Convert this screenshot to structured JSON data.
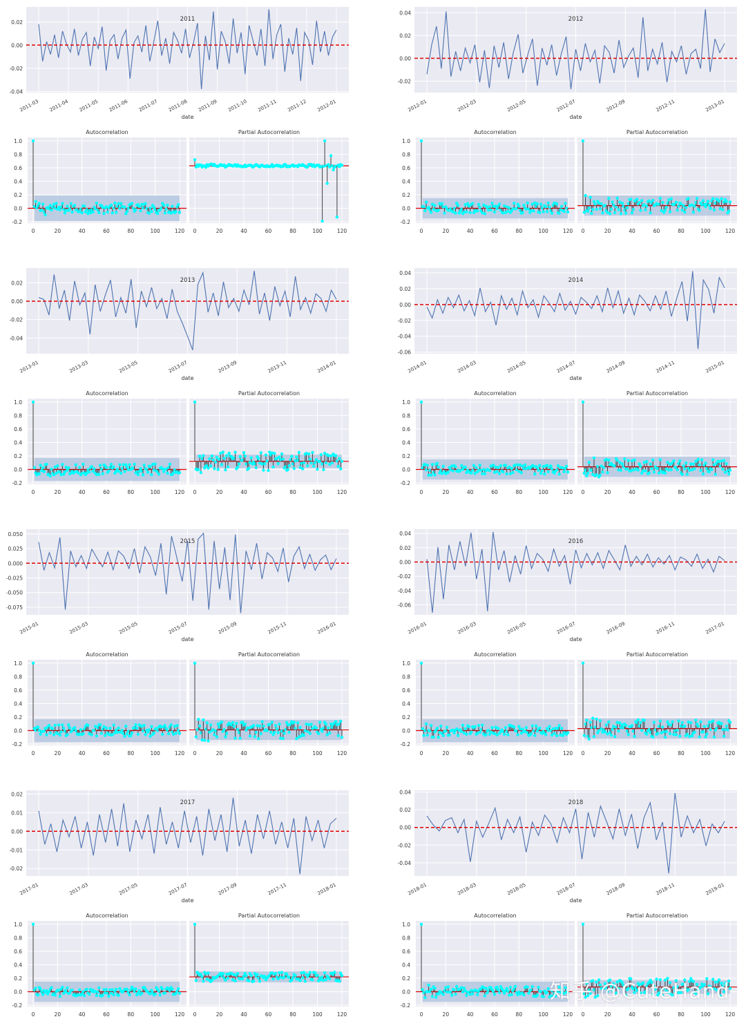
{
  "watermark": "知乎 @CuteHand",
  "colors": {
    "panel_bg": "#eaeaf2",
    "grid": "#ffffff",
    "line": "#4c72b0",
    "zero_line": "#e00000",
    "acf_marker": "#00ffff",
    "acf_stem": "#404040",
    "conf_band": "#b0c4de"
  },
  "chart_data": [
    {
      "type": "line",
      "title": "2011",
      "xlabel": "date",
      "ylabel": "",
      "xticks": [
        "2011-03",
        "2011-04",
        "2011-05",
        "2011-06",
        "2011-07",
        "2011-08",
        "2011-09",
        "2011-10",
        "2011-11",
        "2011-12",
        "2012-01"
      ],
      "yticks": [
        "0.02",
        "0.00",
        "-0.02",
        "-0.04"
      ],
      "ylim": [
        -0.041,
        0.033
      ],
      "zero_line": 0,
      "series": [
        {
          "values": [
            0.018,
            -0.014,
            0.003,
            -0.008,
            0.009,
            -0.011,
            0.012,
            0.001,
            -0.006,
            0.014,
            -0.009,
            0.005,
            0.011,
            -0.018,
            0.007,
            -0.003,
            0.016,
            -0.022,
            0.004,
            0.009,
            -0.012,
            0.006,
            0.013,
            -0.029,
            0.002,
            0.008,
            -0.006,
            0.017,
            -0.014,
            0.003,
            0.021,
            -0.009,
            0.006,
            -0.016,
            0.011,
            0.004,
            -0.007,
            0.014,
            -0.011,
            0.002,
            0.019,
            -0.038,
            0.008,
            -0.013,
            0.029,
            -0.021,
            0.012,
            0.003,
            -0.016,
            0.023,
            -0.007,
            0.011,
            -0.025,
            0.017,
            0.004,
            -0.009,
            0.014,
            -0.018,
            0.031,
            -0.012,
            0.009,
            0.018,
            -0.023,
            0.006,
            -0.008,
            0.015,
            -0.031,
            0.011,
            0.004,
            -0.017,
            0.021,
            -0.006,
            0.012,
            -0.009,
            0.007,
            0.013
          ]
        }
      ]
    },
    {
      "type": "line",
      "title": "2012",
      "xlabel": "date",
      "ylabel": "",
      "xticks": [
        "2012-01",
        "2012-03",
        "2012-05",
        "2012-07",
        "2012-09",
        "2012-11",
        "2013-01"
      ],
      "yticks": [
        "0.04",
        "0.02",
        "0.00",
        "-0.02"
      ],
      "ylim": [
        -0.03,
        0.045
      ],
      "zero_line": 0,
      "series": [
        {
          "values": [
            -0.014,
            0.012,
            0.028,
            -0.009,
            0.041,
            -0.016,
            0.006,
            -0.011,
            0.009,
            -0.004,
            0.012,
            -0.021,
            0.007,
            -0.026,
            0.011,
            -0.008,
            0.014,
            -0.018,
            0.005,
            0.021,
            -0.013,
            0.003,
            0.017,
            -0.024,
            0.009,
            -0.006,
            0.012,
            -0.015,
            0.004,
            0.019,
            -0.027,
            0.008,
            -0.011,
            0.013,
            -0.003,
            0.007,
            -0.022,
            0.011,
            0.005,
            -0.013,
            0.016,
            -0.008,
            0.002,
            0.009,
            -0.017,
            0.036,
            -0.011,
            0.008,
            -0.005,
            0.014,
            -0.021,
            0.006,
            -0.003,
            0.011,
            -0.014,
            0.004,
            0.008,
            -0.009,
            0.043,
            -0.012,
            0.017,
            0.005,
            0.013
          ]
        }
      ]
    },
    {
      "type": "line",
      "title": "2013",
      "xlabel": "date",
      "ylabel": "",
      "xticks": [
        "2013-01",
        "2013-03",
        "2013-05",
        "2013-07",
        "2013-09",
        "2013-11",
        "2014-01"
      ],
      "yticks": [
        "0.02",
        "0.00",
        "-0.02",
        "-0.04"
      ],
      "ylim": [
        -0.057,
        0.036
      ],
      "zero_line": 0,
      "series": [
        {
          "values": [
            0.004,
            0.002,
            -0.015,
            0.029,
            -0.008,
            0.012,
            -0.021,
            0.022,
            -0.004,
            0.009,
            -0.036,
            0.018,
            -0.011,
            0.007,
            0.023,
            -0.017,
            0.004,
            -0.013,
            0.024,
            -0.029,
            0.011,
            -0.006,
            0.015,
            -0.008,
            0.003,
            -0.019,
            0.013,
            -0.011,
            -0.024,
            -0.038,
            -0.053,
            0.018,
            0.031,
            -0.012,
            0.009,
            -0.016,
            0.021,
            -0.007,
            0.003,
            -0.011,
            0.012,
            -0.004,
            0.033,
            -0.014,
            0.009,
            -0.021,
            0.016,
            -0.005,
            0.011,
            -0.017,
            0.027,
            -0.009,
            0.004,
            -0.013,
            0.008,
            0.003,
            -0.011,
            0.012,
            0.002
          ]
        }
      ]
    },
    {
      "type": "line",
      "title": "2014",
      "xlabel": "date",
      "ylabel": "",
      "xticks": [
        "2014-01",
        "2014-03",
        "2014-05",
        "2014-07",
        "2014-09",
        "2014-11",
        "2015-01"
      ],
      "yticks": [
        "0.04",
        "0.02",
        "0.00",
        "-0.02",
        "-0.04",
        "-0.06"
      ],
      "ylim": [
        -0.062,
        0.046
      ],
      "zero_line": 0,
      "series": [
        {
          "values": [
            -0.003,
            -0.017,
            0.006,
            -0.011,
            0.009,
            -0.004,
            0.012,
            -0.008,
            0.005,
            -0.014,
            0.021,
            -0.009,
            0.003,
            -0.026,
            0.011,
            -0.006,
            0.008,
            -0.013,
            0.017,
            -0.004,
            0.006,
            -0.016,
            0.011,
            0.002,
            -0.009,
            0.014,
            -0.007,
            0.004,
            -0.012,
            0.009,
            0.003,
            -0.005,
            0.011,
            -0.009,
            0.021,
            -0.004,
            0.017,
            -0.011,
            0.008,
            -0.013,
            0.012,
            0.004,
            -0.008,
            0.011,
            -0.006,
            0.017,
            -0.015,
            0.008,
            0.029,
            -0.021,
            0.042,
            -0.056,
            0.031,
            0.019,
            -0.011,
            0.034,
            0.021
          ]
        }
      ]
    },
    {
      "type": "line",
      "title": "2015",
      "xlabel": "date",
      "ylabel": "",
      "xticks": [
        "2015-01",
        "2015-03",
        "2015-05",
        "2015-07",
        "2015-09",
        "2015-11",
        "2016-01"
      ],
      "yticks": [
        "0.050",
        "0.025",
        "0.000",
        "-0.025",
        "-0.050",
        "-0.075"
      ],
      "ylim": [
        -0.088,
        0.058
      ],
      "zero_line": 0,
      "series": [
        {
          "values": [
            0.036,
            -0.012,
            0.018,
            -0.008,
            0.044,
            -0.079,
            0.021,
            -0.006,
            0.013,
            -0.009,
            0.024,
            0.008,
            -0.006,
            0.019,
            -0.011,
            0.021,
            0.012,
            -0.009,
            0.025,
            -0.017,
            0.028,
            0.011,
            -0.021,
            0.034,
            -0.053,
            0.046,
            0.009,
            -0.031,
            0.038,
            -0.064,
            0.041,
            0.051,
            -0.079,
            0.038,
            -0.044,
            0.027,
            -0.063,
            0.049,
            -0.085,
            0.021,
            -0.011,
            0.034,
            -0.027,
            0.018,
            0.009,
            -0.014,
            0.026,
            -0.032,
            0.012,
            0.028,
            -0.009,
            0.015,
            -0.012,
            0.006,
            0.014,
            -0.011,
            0.008
          ]
        }
      ]
    },
    {
      "type": "line",
      "title": "2016",
      "xlabel": "date",
      "ylabel": "",
      "xticks": [
        "2016-01",
        "2016-03",
        "2016-05",
        "2016-07",
        "2016-09",
        "2016-11",
        "2017-01"
      ],
      "yticks": [
        "0.04",
        "0.02",
        "0.00",
        "-0.02",
        "-0.04",
        "-0.06"
      ],
      "ylim": [
        -0.074,
        0.046
      ],
      "zero_line": 0,
      "series": [
        {
          "values": [
            0.004,
            -0.071,
            0.021,
            -0.052,
            0.024,
            -0.011,
            0.029,
            -0.006,
            0.041,
            -0.024,
            0.018,
            -0.069,
            0.042,
            -0.011,
            0.016,
            -0.028,
            0.009,
            -0.017,
            0.023,
            -0.009,
            0.012,
            0.004,
            -0.013,
            0.018,
            -0.006,
            0.009,
            -0.031,
            0.017,
            -0.008,
            0.012,
            -0.004,
            0.013,
            -0.009,
            0.016,
            0.003,
            -0.011,
            0.024,
            -0.006,
            0.008,
            -0.004,
            0.011,
            -0.007,
            0.006,
            -0.003,
            0.009,
            -0.011,
            0.007,
            0.003,
            -0.006,
            0.011,
            -0.009,
            0.004,
            -0.014,
            0.008,
            0.002
          ]
        }
      ]
    },
    {
      "type": "line",
      "title": "2017",
      "xlabel": "date",
      "ylabel": "",
      "xticks": [
        "2017-01",
        "2017-03",
        "2017-05",
        "2017-07",
        "2017-09",
        "2017-11",
        "2018-01"
      ],
      "yticks": [
        "0.02",
        "0.01",
        "0.00",
        "-0.01",
        "-0.02"
      ],
      "ylim": [
        -0.024,
        0.022
      ],
      "zero_line": 0,
      "series": [
        {
          "values": [
            0.011,
            -0.007,
            0.004,
            -0.011,
            0.006,
            -0.003,
            0.008,
            -0.009,
            0.005,
            -0.013,
            0.009,
            -0.006,
            0.012,
            -0.008,
            0.015,
            -0.011,
            0.006,
            -0.004,
            0.009,
            -0.012,
            0.013,
            -0.007,
            0.005,
            -0.009,
            0.011,
            -0.006,
            0.008,
            -0.013,
            0.012,
            -0.005,
            0.009,
            -0.011,
            0.018,
            -0.008,
            0.006,
            -0.012,
            0.009,
            -0.004,
            0.011,
            -0.007,
            0.005,
            -0.009,
            0.007,
            -0.023,
            0.008,
            -0.005,
            0.006,
            -0.009,
            0.004,
            0.007
          ]
        }
      ]
    },
    {
      "type": "line",
      "title": "2018",
      "xlabel": "date",
      "ylabel": "",
      "xticks": [
        "2018-01",
        "2018-03",
        "2018-05",
        "2018-07",
        "2018-09",
        "2018-11",
        "2019-01"
      ],
      "yticks": [
        "0.04",
        "0.02",
        "0.00",
        "-0.02",
        "-0.04"
      ],
      "ylim": [
        -0.055,
        0.042
      ],
      "zero_line": 0,
      "series": [
        {
          "values": [
            0.013,
            0.003,
            -0.004,
            0.008,
            0.011,
            -0.006,
            0.009,
            -0.039,
            0.007,
            -0.011,
            0.005,
            0.022,
            -0.014,
            0.009,
            -0.006,
            0.012,
            -0.028,
            0.006,
            -0.009,
            0.014,
            0.004,
            -0.017,
            0.011,
            -0.006,
            0.021,
            -0.036,
            0.017,
            -0.011,
            0.024,
            0.006,
            -0.013,
            0.021,
            -0.009,
            0.015,
            -0.024,
            0.011,
            0.028,
            -0.014,
            0.006,
            -0.052,
            0.039,
            -0.011,
            0.013,
            -0.006,
            0.009,
            -0.021,
            0.004,
            -0.006,
            0.007
          ]
        }
      ]
    },
    {
      "type": "acf_pacf",
      "year": "2011",
      "acf_title": "Autocorrelation",
      "pacf_title": "Partial Autocorrelation",
      "yticks": [
        "1.0",
        "0.8",
        "0.6",
        "0.4",
        "0.2",
        "0.0",
        "-0.2"
      ],
      "xticks": [
        "0",
        "20",
        "40",
        "60",
        "80",
        "100",
        "120"
      ],
      "acf": {
        "lag0": 1.0,
        "level": 0.0,
        "band": 0.19,
        "spread": 0.08
      },
      "pacf": {
        "lag0": 0.72,
        "level": 0.63,
        "band": 0.02,
        "spread": 0.02,
        "extremes": [
          [
            104,
            -0.19
          ],
          [
            106,
            1.0
          ],
          [
            108,
            0.37
          ],
          [
            111,
            0.78
          ],
          [
            113,
            0.57
          ],
          [
            116,
            -0.13
          ]
        ]
      }
    },
    {
      "type": "acf_pacf",
      "year": "2012",
      "acf_title": "Autocorrelation",
      "pacf_title": "Partial Autocorrelation",
      "yticks": [
        "1.0",
        "0.8",
        "0.6",
        "0.4",
        "0.2",
        "0.0",
        "-0.2"
      ],
      "xticks": [
        "0",
        "20",
        "40",
        "60",
        "80",
        "100",
        "120"
      ],
      "acf": {
        "lag0": 1.0,
        "level": 0.0,
        "band": 0.15,
        "spread": 0.08
      },
      "pacf": {
        "lag0": 1.0,
        "level": 0.04,
        "band": 0.15,
        "spread": 0.12
      }
    },
    {
      "type": "acf_pacf",
      "year": "2013",
      "acf_title": "Autocorrelation",
      "pacf_title": "Partial Autocorrelation",
      "yticks": [
        "1.0",
        "0.8",
        "0.6",
        "0.4",
        "0.2",
        "0.0",
        "-0.2"
      ],
      "xticks": [
        "0",
        "20",
        "40",
        "60",
        "80",
        "100",
        "120"
      ],
      "acf": {
        "lag0": 1.0,
        "level": 0.0,
        "band": 0.17,
        "spread": 0.08
      },
      "pacf": {
        "lag0": 1.0,
        "level": 0.12,
        "band": 0.1,
        "spread": 0.14
      }
    },
    {
      "type": "acf_pacf",
      "year": "2014",
      "acf_title": "Autocorrelation",
      "pacf_title": "Partial Autocorrelation",
      "yticks": [
        "1.0",
        "0.8",
        "0.6",
        "0.4",
        "0.2",
        "0.0",
        "-0.2"
      ],
      "xticks": [
        "0",
        "20",
        "40",
        "60",
        "80",
        "100",
        "120"
      ],
      "acf": {
        "lag0": 1.0,
        "level": 0.0,
        "band": 0.15,
        "spread": 0.07
      },
      "pacf": {
        "lag0": 1.0,
        "level": 0.04,
        "band": 0.15,
        "spread": 0.12
      }
    },
    {
      "type": "acf_pacf",
      "year": "2015",
      "acf_title": "Autocorrelation",
      "pacf_title": "Partial Autocorrelation",
      "yticks": [
        "1.0",
        "0.8",
        "0.6",
        "0.4",
        "0.2",
        "0.0",
        "-0.2"
      ],
      "xticks": [
        "0",
        "20",
        "40",
        "60",
        "80",
        "100",
        "120"
      ],
      "acf": {
        "lag0": 1.0,
        "level": 0.0,
        "band": 0.17,
        "spread": 0.09
      },
      "pacf": {
        "lag0": 1.0,
        "level": 0.01,
        "band": 0.15,
        "spread": 0.13
      }
    },
    {
      "type": "acf_pacf",
      "year": "2016",
      "acf_title": "Autocorrelation",
      "pacf_title": "Partial Autocorrelation",
      "yticks": [
        "1.0",
        "0.8",
        "0.6",
        "0.4",
        "0.2",
        "0.0",
        "-0.2"
      ],
      "xticks": [
        "0",
        "20",
        "40",
        "60",
        "80",
        "100",
        "120"
      ],
      "acf": {
        "lag0": 1.0,
        "level": 0.0,
        "band": 0.17,
        "spread": 0.08
      },
      "pacf": {
        "lag0": 1.0,
        "level": 0.03,
        "band": 0.15,
        "spread": 0.13
      }
    },
    {
      "type": "acf_pacf",
      "year": "2017",
      "acf_title": "Autocorrelation",
      "pacf_title": "Partial Autocorrelation",
      "yticks": [
        "1.0",
        "0.8",
        "0.6",
        "0.4",
        "0.2",
        "0.0",
        "-0.2"
      ],
      "xticks": [
        "0",
        "20",
        "40",
        "60",
        "80",
        "100",
        "120"
      ],
      "acf": {
        "lag0": 1.0,
        "level": 0.0,
        "band": 0.15,
        "spread": 0.07
      },
      "pacf": {
        "lag0": 1.0,
        "level": 0.22,
        "band": 0.08,
        "spread": 0.07
      }
    },
    {
      "type": "acf_pacf",
      "year": "2018",
      "acf_title": "Autocorrelation",
      "pacf_title": "Partial Autocorrelation",
      "yticks": [
        "1.0",
        "0.8",
        "0.6",
        "0.4",
        "0.2",
        "0.0",
        "-0.2"
      ],
      "xticks": [
        "0",
        "20",
        "40",
        "60",
        "80",
        "100",
        "120"
      ],
      "acf": {
        "lag0": 1.0,
        "level": 0.0,
        "band": 0.15,
        "spread": 0.08
      },
      "pacf": {
        "lag0": 1.0,
        "level": 0.07,
        "band": 0.1,
        "spread": 0.13
      }
    }
  ]
}
